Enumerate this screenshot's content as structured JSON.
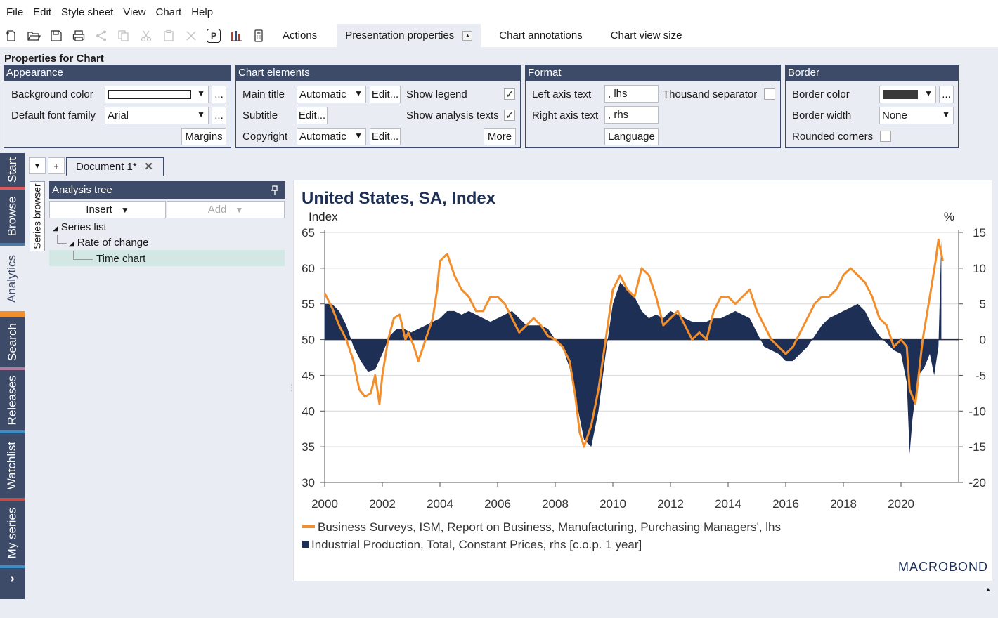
{
  "menu": [
    "File",
    "Edit",
    "Style sheet",
    "View",
    "Chart",
    "Help"
  ],
  "toolbar": {
    "icons": [
      "new-document-icon",
      "open-icon",
      "save-icon",
      "print-icon",
      "share-icon",
      "copy-icon",
      "cut-icon",
      "paste-icon",
      "delete-icon",
      "presentation-mode-icon",
      "chart-type-icon",
      "calculator-icon"
    ],
    "p_label": "P",
    "tabs": [
      "Actions",
      "Presentation properties",
      "Chart annotations",
      "Chart view size"
    ]
  },
  "props": {
    "title": "Properties for Chart",
    "appearance": {
      "head": "Appearance",
      "bg_label": "Background color",
      "font_label": "Default font family",
      "font_value": "Arial",
      "ellipsis": "...",
      "margins": "Margins"
    },
    "elements": {
      "head": "Chart elements",
      "main_title": "Main title",
      "main_title_value": "Automatic",
      "subtitle": "Subtitle",
      "copyright": "Copyright",
      "copyright_value": "Automatic",
      "edit": "Edit...",
      "show_legend": "Show legend",
      "show_analysis": "Show analysis texts",
      "more": "More",
      "check": "✓"
    },
    "format": {
      "head": "Format",
      "left_axis": "Left axis text",
      "left_axis_value": ", lhs",
      "right_axis": "Right axis text",
      "right_axis_value": ", rhs",
      "thousand": "Thousand separator",
      "language": "Language"
    },
    "border": {
      "head": "Border",
      "color_label": "Border color",
      "color_value": "#3a3a3a",
      "width_label": "Border width",
      "width_value": "None",
      "rounded": "Rounded corners"
    }
  },
  "sidebar": {
    "tabs": [
      {
        "label": "Start",
        "color": "#e15759"
      },
      {
        "label": "Browse",
        "color": "#4e79a7"
      },
      {
        "label": "Analytics",
        "color": "#f28e2b"
      },
      {
        "label": "Search",
        "color": "#b07aa1"
      },
      {
        "label": "Releases",
        "color": "#3a8fc8"
      },
      {
        "label": "Watchlist",
        "color": "#c0504d"
      },
      {
        "label": "My series",
        "color": "#3a8fc8"
      }
    ],
    "expand": "›"
  },
  "document": {
    "tab": "Document 1*",
    "close": "✕",
    "dropdown": "▾",
    "add": "+"
  },
  "series_browser": "Series browser",
  "tree": {
    "head": "Analysis tree",
    "insert": "Insert",
    "add": "Add",
    "nodes": [
      "Series list",
      "Rate of change",
      "Time chart"
    ]
  },
  "chart_data": {
    "type": "line",
    "title": "United States, SA, Index",
    "left_axis_label": "Index",
    "right_axis_label": "%",
    "left_ylim": [
      30,
      65
    ],
    "left_ticks": [
      65,
      60,
      55,
      50,
      45,
      40,
      35,
      30
    ],
    "right_ylim": [
      -20,
      15
    ],
    "right_ticks": [
      15,
      10,
      5,
      0,
      -5,
      -10,
      -15,
      -20
    ],
    "x_ticks": [
      "2000",
      "2002",
      "2004",
      "2006",
      "2008",
      "2010",
      "2012",
      "2014",
      "2016",
      "2018",
      "2020"
    ],
    "x_range": [
      2000,
      2022
    ],
    "grid": true,
    "colors": {
      "pmi": "#f28e2b",
      "ip": "#1e2f55"
    },
    "series": [
      {
        "name": "Business Surveys, ISM, Report on Business, Manufacturing, Purchasing Managers', lhs",
        "style": "line",
        "axis": "left",
        "x": [
          2000.0,
          2000.25,
          2000.5,
          2000.75,
          2001.0,
          2001.2,
          2001.4,
          2001.6,
          2001.75,
          2001.9,
          2002.0,
          2002.2,
          2002.4,
          2002.6,
          2002.8,
          2002.9,
          2003.1,
          2003.25,
          2003.5,
          2003.75,
          2003.9,
          2004.0,
          2004.25,
          2004.5,
          2004.75,
          2005.0,
          2005.25,
          2005.5,
          2005.75,
          2006.0,
          2006.25,
          2006.5,
          2006.75,
          2007.0,
          2007.25,
          2007.5,
          2007.75,
          2008.0,
          2008.25,
          2008.5,
          2008.7,
          2008.85,
          2009.0,
          2009.25,
          2009.5,
          2009.75,
          2010.0,
          2010.25,
          2010.5,
          2010.75,
          2011.0,
          2011.25,
          2011.5,
          2011.75,
          2012.0,
          2012.25,
          2012.5,
          2012.75,
          2013.0,
          2013.25,
          2013.5,
          2013.75,
          2014.0,
          2014.25,
          2014.5,
          2014.75,
          2015.0,
          2015.25,
          2015.5,
          2015.75,
          2016.0,
          2016.25,
          2016.5,
          2016.75,
          2017.0,
          2017.25,
          2017.5,
          2017.75,
          2018.0,
          2018.25,
          2018.5,
          2018.75,
          2019.0,
          2019.25,
          2019.5,
          2019.75,
          2020.0,
          2020.2,
          2020.3,
          2020.5,
          2020.75,
          2021.0,
          2021.2,
          2021.3,
          2021.45
        ],
        "y": [
          56.5,
          54.5,
          52,
          50,
          47,
          43,
          42,
          42.5,
          45,
          41,
          45,
          50,
          53,
          53.5,
          50,
          51,
          49,
          47,
          50,
          53,
          57,
          61,
          62,
          59,
          57,
          56,
          54,
          54,
          56,
          56,
          55,
          53,
          51,
          52,
          53,
          52,
          50.5,
          50,
          49,
          47,
          42,
          37,
          35,
          38,
          43,
          50,
          57,
          59,
          57,
          56,
          60,
          59,
          56,
          52,
          53,
          54,
          52,
          50,
          51,
          50,
          54,
          56,
          56,
          55,
          56,
          57,
          54,
          52,
          50,
          49,
          48,
          49,
          51,
          53,
          55,
          56,
          56,
          57,
          59,
          60,
          59,
          58,
          56,
          53,
          52,
          49,
          50,
          49,
          43,
          41,
          50,
          56,
          61,
          64,
          61
        ]
      },
      {
        "name": "Industrial Production, Total, Constant Prices, rhs [c.o.p. 1 year]",
        "style": "area",
        "axis": "right",
        "x": [
          2000.0,
          2000.25,
          2000.5,
          2000.75,
          2001.0,
          2001.25,
          2001.5,
          2001.75,
          2002.0,
          2002.25,
          2002.5,
          2002.75,
          2003.0,
          2003.25,
          2003.5,
          2003.75,
          2004.0,
          2004.25,
          2004.5,
          2004.75,
          2005.0,
          2005.25,
          2005.5,
          2005.75,
          2006.0,
          2006.25,
          2006.5,
          2006.75,
          2007.0,
          2007.25,
          2007.5,
          2007.75,
          2008.0,
          2008.25,
          2008.5,
          2008.75,
          2009.0,
          2009.25,
          2009.5,
          2009.75,
          2010.0,
          2010.25,
          2010.5,
          2010.75,
          2011.0,
          2011.25,
          2011.5,
          2011.75,
          2012.0,
          2012.25,
          2012.5,
          2012.75,
          2013.0,
          2013.25,
          2013.5,
          2013.75,
          2014.0,
          2014.25,
          2014.5,
          2014.75,
          2015.0,
          2015.25,
          2015.5,
          2015.75,
          2016.0,
          2016.25,
          2016.5,
          2016.75,
          2017.0,
          2017.25,
          2017.5,
          2017.75,
          2018.0,
          2018.25,
          2018.5,
          2018.75,
          2019.0,
          2019.25,
          2019.5,
          2019.75,
          2020.0,
          2020.2,
          2020.3,
          2020.4,
          2020.6,
          2020.8,
          2021.0,
          2021.15,
          2021.3,
          2021.4
        ],
        "y": [
          5,
          5,
          4,
          2,
          -1,
          -3,
          -4.5,
          -4.2,
          -2,
          0.5,
          1.5,
          1.5,
          1,
          1.5,
          2,
          2.5,
          3,
          4,
          4,
          3.5,
          4,
          3.5,
          3,
          2.5,
          3,
          3.5,
          4,
          3,
          2,
          2,
          2,
          1.5,
          0,
          -1,
          -4,
          -9,
          -14,
          -15,
          -10,
          -2,
          5,
          8,
          7,
          6,
          4,
          3,
          3.5,
          3,
          4,
          3.5,
          3,
          2.5,
          2.5,
          2.5,
          3,
          3,
          3.5,
          4,
          3.5,
          3,
          1,
          -1,
          -1.5,
          -2,
          -3,
          -3,
          -2,
          -1,
          0.5,
          2,
          3,
          3.5,
          4,
          4.5,
          5,
          4,
          2,
          0.5,
          -0.5,
          -1.5,
          -2,
          -6,
          -16,
          -11,
          -5,
          -4,
          -2,
          -5,
          -1,
          14
        ]
      }
    ],
    "legend": [
      "Business Surveys, ISM, Report on Business, Manufacturing, Purchasing Managers', lhs",
      "Industrial Production, Total, Constant Prices, rhs [c.o.p. 1 year]"
    ],
    "brand": "MACROBOND"
  }
}
